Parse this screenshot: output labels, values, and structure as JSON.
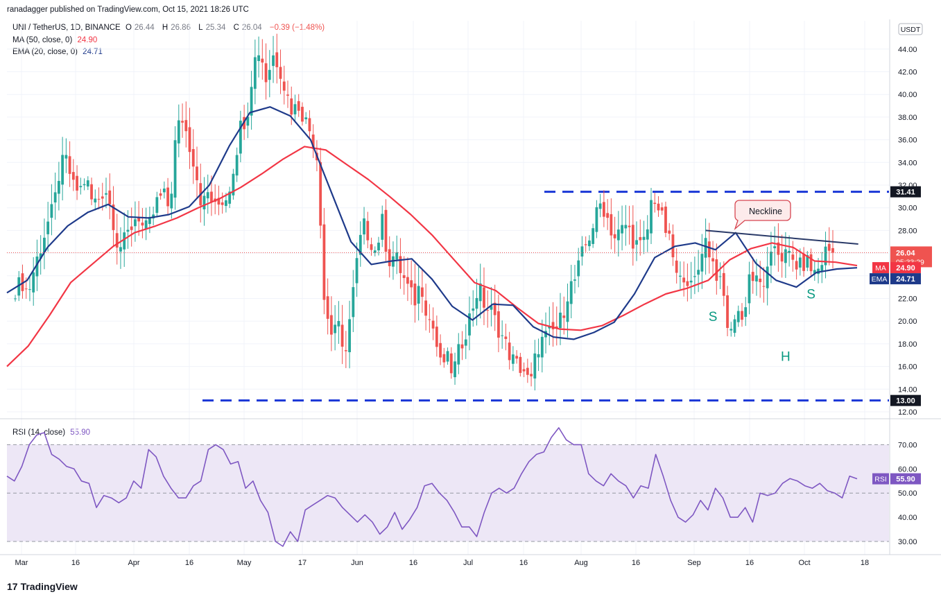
{
  "header": {
    "publisher": "ranadagger published on TradingView.com, Oct 15, 2021 18:26 UTC"
  },
  "legend": {
    "symbol": "UNI / TetherUS, 1D, BINANCE",
    "open_label": "O",
    "open": "26.44",
    "high_label": "H",
    "high": "26.86",
    "low_label": "L",
    "low": "25.34",
    "close_label": "C",
    "close": "26.04",
    "change": "−0.39 (−1.48%)",
    "ma_label": "MA (50, close, 0)",
    "ma_value": "24.90",
    "ema_label": "EMA (20, close, 0)",
    "ema_value": "24.71",
    "rsi_label": "RSI (14, close)",
    "rsi_value": "55.90"
  },
  "colors": {
    "up": "#26a69a",
    "down": "#ef5350",
    "ma": "#f23645",
    "ema": "#1e3a8a",
    "level_line": "#1936d6",
    "rsi_line": "#7e57c2",
    "rsi_band": "#ede7f6",
    "grid": "#f0f3fa"
  },
  "chart_data": [
    {
      "type": "candlestick",
      "title": "",
      "currency": "USDT",
      "ylim": [
        12,
        45.5
      ],
      "y_ticks": [
        "12.00",
        "14.00",
        "16.00",
        "18.00",
        "20.00",
        "22.00",
        "24.00",
        "26.00",
        "28.00",
        "30.00",
        "32.00",
        "34.00",
        "36.00",
        "38.00",
        "40.00",
        "42.00",
        "44.00"
      ],
      "x_ticks": [
        "Mar",
        "16",
        "Apr",
        "16",
        "May",
        "17",
        "Jun",
        "16",
        "Jul",
        "16",
        "Aug",
        "16",
        "Sep",
        "16",
        "Oct",
        "18"
      ],
      "price_labels": {
        "last": "26.04",
        "countdown": "05:33:29",
        "ma": "24.90",
        "ema": "24.71",
        "ma_tag": "MA",
        "ema_tag": "EMA"
      },
      "levels": [
        {
          "label": "31.41",
          "value": 31.41,
          "style": "dashed"
        },
        {
          "label": "13.00",
          "value": 13.0,
          "style": "dashed"
        }
      ],
      "neckline": {
        "label": "Neckline",
        "from": {
          "date": "Sep 7",
          "value": 28.0
        },
        "to": {
          "date": "Oct 19",
          "value": 26.8
        }
      },
      "pattern_labels": [
        {
          "text": "S",
          "date": "Sep 9",
          "value": 20.0
        },
        {
          "text": "H",
          "date": "Sep 29",
          "value": 16.5
        },
        {
          "text": "S",
          "date": "Oct 6",
          "value": 22.0
        }
      ],
      "series": [
        {
          "name": "UNI / TetherUS",
          "kind": "ohlc_waypoints",
          "close_path": [
            22.8,
            23.5,
            22.4,
            24.8,
            26.6,
            28.6,
            30.1,
            33.7,
            34.2,
            31.8,
            31.5,
            32.7,
            30.3,
            30.9,
            31.8,
            29.6,
            26.4,
            27.1,
            28.3,
            29.6,
            27.9,
            28.6,
            30.5,
            31.2,
            29.8,
            36.8,
            37.9,
            35.7,
            33.5,
            30.1,
            31.4,
            29.9,
            30.6,
            31.1,
            33.9,
            37.2,
            38.1,
            42.8,
            44.1,
            41.2,
            43.5,
            42.6,
            40.3,
            38.6,
            39.1,
            37.8,
            36.5,
            34.2,
            21.8,
            18.9,
            20.2,
            16.5,
            20.4,
            24.9,
            28.6,
            27.4,
            26.1,
            28.8,
            25.3,
            25.9,
            24.2,
            22.9,
            21.7,
            23.5,
            20.6,
            19.3,
            16.1,
            16.8,
            15.4,
            17.5,
            19.2,
            21.2,
            23.1,
            21.2,
            20.8,
            19.4,
            18.2,
            16.8,
            16.1,
            15.7,
            14.2,
            17.5,
            18.4,
            18.9,
            19.3,
            20.5,
            22.9,
            23.7,
            25.8,
            27.2,
            28.9,
            30.5,
            29.1,
            27.3,
            27.9,
            28.6,
            27.1,
            26.5,
            27.2,
            31.4,
            29.8,
            28.1,
            26.2,
            23.1,
            24.4,
            22.9,
            24.2,
            27.6,
            25.8,
            24.1,
            22.3,
            18.2,
            21.5,
            19.8,
            24.1,
            23.5,
            23.1,
            24.4,
            26.8,
            25.7,
            25.9,
            25.1,
            24.8,
            25.3,
            24.2,
            24.8,
            26.4,
            26.04
          ]
        },
        {
          "name": "MA (50, close, 0)",
          "kind": "line",
          "path": [
            16.0,
            17.8,
            20.5,
            23.4,
            25.0,
            26.6,
            27.8,
            28.4,
            29.1,
            30.0,
            30.8,
            31.8,
            33.0,
            34.3,
            35.4,
            35.1,
            33.8,
            32.5,
            31.0,
            29.4,
            27.6,
            25.5,
            23.4,
            22.7,
            21.2,
            19.8,
            19.3,
            19.2,
            19.6,
            20.5,
            21.5,
            22.4,
            22.9,
            23.6,
            25.4,
            26.4,
            26.9,
            26.5,
            25.3,
            25.2,
            24.9
          ]
        },
        {
          "name": "EMA (20, close, 0)",
          "kind": "line",
          "path": [
            22.5,
            23.6,
            26.5,
            28.4,
            29.6,
            30.3,
            29.2,
            29.1,
            29.4,
            30.1,
            32.0,
            35.5,
            38.4,
            38.9,
            38.1,
            36.0,
            31.5,
            27.0,
            25.0,
            25.3,
            25.5,
            23.7,
            21.3,
            20.1,
            21.5,
            21.4,
            19.5,
            18.6,
            18.4,
            19.0,
            19.9,
            22.4,
            25.6,
            26.6,
            26.9,
            26.3,
            27.8,
            25.1,
            23.6,
            23.0,
            24.3,
            24.6,
            24.71
          ]
        }
      ]
    },
    {
      "type": "line",
      "title": "",
      "ylim": [
        27,
        78
      ],
      "y_ticks": [
        "30.00",
        "40.00",
        "50.00",
        "60.00",
        "70.00"
      ],
      "band": [
        30,
        70
      ],
      "mid": 50,
      "series": [
        {
          "name": "RSI (14, close)",
          "values": [
            57,
            55,
            61,
            70,
            74,
            75,
            66,
            64,
            61,
            60,
            55,
            54,
            44,
            49,
            48,
            46,
            48,
            55,
            52,
            68,
            65,
            57,
            52,
            48,
            48,
            53,
            55,
            68,
            70,
            68,
            62,
            63,
            52,
            55,
            47,
            42,
            30,
            28,
            34,
            30,
            43,
            45,
            47,
            49,
            48,
            44,
            41,
            38,
            41,
            38,
            33,
            36,
            42,
            35,
            39,
            44,
            53,
            54,
            50,
            47,
            42,
            36,
            36,
            32,
            42,
            50,
            52,
            50,
            52,
            58,
            63,
            66,
            67,
            73,
            77,
            72,
            70,
            70,
            58,
            55,
            53,
            58,
            55,
            53,
            48,
            53,
            52,
            66,
            57,
            47,
            40,
            38,
            41,
            47,
            43,
            52,
            48,
            40,
            40,
            44,
            38,
            50,
            49,
            50,
            54,
            56,
            55,
            53,
            52,
            54,
            51,
            50,
            48,
            57,
            55.9
          ]
        }
      ]
    }
  ]
}
